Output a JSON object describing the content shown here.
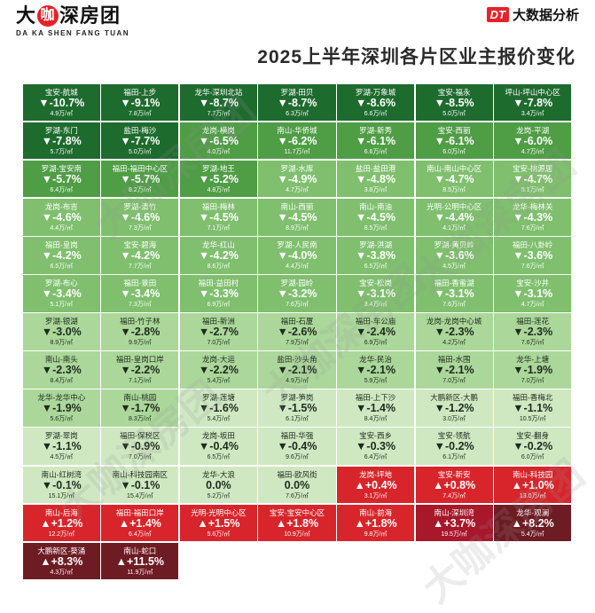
{
  "brand": {
    "name_left": "大",
    "name_ka": "咖",
    "name_right": "深房团",
    "subtitle": "DA KA SHEN FANG TUAN"
  },
  "source": {
    "logo": "DT",
    "label": "大数据分析"
  },
  "watermark": "大咖深房团",
  "chart_data": {
    "type": "heatmap",
    "title": "2025上半年深圳各片区业主报价变化",
    "columns": 7,
    "price_unit": "万/㎡",
    "colors": {
      "dark_green": "#1e6b2e",
      "green": "#4f9d45",
      "mid_green": "#7fbf6e",
      "light_green": "#abd79a",
      "pale_green": "#cfe8c1",
      "red": "#d7252b",
      "dark_red": "#a8172a",
      "darker_red": "#6e1c24"
    },
    "cells": [
      {
        "name": "宝安-航城",
        "change": "▼-10.7%",
        "price": "4.9万/㎡",
        "value": -10.7
      },
      {
        "name": "福田-上步",
        "change": "▼-9.1%",
        "price": "7.8万/㎡",
        "value": -9.1
      },
      {
        "name": "龙华-深圳北站",
        "change": "▼-8.7%",
        "price": "7.7万/㎡",
        "value": -8.7
      },
      {
        "name": "罗湖-田贝",
        "change": "▼-8.7%",
        "price": "6.3万/㎡",
        "value": -8.7
      },
      {
        "name": "罗湖-万象城",
        "change": "▼-8.6%",
        "price": "6.6万/㎡",
        "value": -8.6
      },
      {
        "name": "宝安-福永",
        "change": "▼-8.5%",
        "price": "5.0万/㎡",
        "value": -8.5
      },
      {
        "name": "坪山-坪山中心区",
        "change": "▼-7.8%",
        "price": "3.4万/㎡",
        "value": -7.8
      },
      {
        "name": "罗湖-东门",
        "change": "▼-7.8%",
        "price": "5.7万/㎡",
        "value": -7.8
      },
      {
        "name": "盐田-梅沙",
        "change": "▼-7.7%",
        "price": "5.0万/㎡",
        "value": -7.7
      },
      {
        "name": "龙岗-横岗",
        "change": "▼-6.5%",
        "price": "4.0万/㎡",
        "value": -6.5
      },
      {
        "name": "南山-华侨城",
        "change": "▼-6.2%",
        "price": "11.7万/㎡",
        "value": -6.2
      },
      {
        "name": "罗湖-新秀",
        "change": "▼-6.1%",
        "price": "6.6万/㎡",
        "value": -6.1
      },
      {
        "name": "宝安-西丽",
        "change": "▼-6.1%",
        "price": "6.0万/㎡",
        "value": -6.1
      },
      {
        "name": "龙岗-平湖",
        "change": "▼-6.0%",
        "price": "4.7万/㎡",
        "value": -6.0
      },
      {
        "name": "罗湖-宝安南",
        "change": "▼-5.7%",
        "price": "6.4万/㎡",
        "value": -5.7
      },
      {
        "name": "福田-福田中心区",
        "change": "▼-5.7%",
        "price": "8.2万/㎡",
        "value": -5.7
      },
      {
        "name": "罗湖-地王",
        "change": "▼-5.2%",
        "price": "4.8万/㎡",
        "value": -5.2
      },
      {
        "name": "罗湖-水库",
        "change": "▼-4.9%",
        "price": "4.7万/㎡",
        "value": -4.9
      },
      {
        "name": "盐田-盐田港",
        "change": "▼-4.8%",
        "price": "3.8万/㎡",
        "value": -4.8
      },
      {
        "name": "南山-南山中心区",
        "change": "▼-4.7%",
        "price": "8.5万/㎡",
        "value": -4.7
      },
      {
        "name": "宝安-桃源居",
        "change": "▼-4.7%",
        "price": "5.1万/㎡",
        "value": -4.7
      },
      {
        "name": "龙岗-布吉",
        "change": "▼-4.6%",
        "price": "4.4万/㎡",
        "value": -4.6
      },
      {
        "name": "罗湖-清竹",
        "change": "▼-4.6%",
        "price": "7.3万/㎡",
        "value": -4.6
      },
      {
        "name": "福田-梅林",
        "change": "▼-4.5%",
        "price": "7.1万/㎡",
        "value": -4.5
      },
      {
        "name": "南山-西丽",
        "change": "▼-4.5%",
        "price": "8.9万/㎡",
        "value": -4.5
      },
      {
        "name": "南山-南油",
        "change": "▼-4.5%",
        "price": "8.5万/㎡",
        "value": -4.5
      },
      {
        "name": "光明-公明中心区",
        "change": "▼-4.4%",
        "price": "4.1万/㎡",
        "value": -4.4
      },
      {
        "name": "龙华-梅林关",
        "change": "▼-4.3%",
        "price": "7.6万/㎡",
        "value": -4.3
      },
      {
        "name": "福田-皇岗",
        "change": "▼-4.2%",
        "price": "6.5万/㎡",
        "value": -4.2
      },
      {
        "name": "宝安-碧海",
        "change": "▼-4.2%",
        "price": "7.7万/㎡",
        "value": -4.2
      },
      {
        "name": "龙华-红山",
        "change": "▼-4.2%",
        "price": "8.6万/㎡",
        "value": -4.2
      },
      {
        "name": "罗湖-人民南",
        "change": "▼-4.0%",
        "price": "4.4万/㎡",
        "value": -4.0
      },
      {
        "name": "罗湖-洪湖",
        "change": "▼-3.8%",
        "price": "6.5万/㎡",
        "value": -3.8
      },
      {
        "name": "罗湖-黄贝岭",
        "change": "▼-3.6%",
        "price": "4.5万/㎡",
        "value": -3.6
      },
      {
        "name": "福田-八卦岭",
        "change": "▼-3.6%",
        "price": "7.6万/㎡",
        "value": -3.6
      },
      {
        "name": "罗湖-布心",
        "change": "▼-3.4%",
        "price": "5.1万/㎡",
        "value": -3.4
      },
      {
        "name": "福田-景田",
        "change": "▼-3.4%",
        "price": "7.3万/㎡",
        "value": -3.4
      },
      {
        "name": "福田-益田村",
        "change": "▼-3.3%",
        "price": "6.9万/㎡",
        "value": -3.3
      },
      {
        "name": "罗湖-园岭",
        "change": "▼-3.2%",
        "price": "7.6万/㎡",
        "value": -3.2
      },
      {
        "name": "宝安-松岗",
        "change": "▼-3.1%",
        "price": "3.4万/㎡",
        "value": -3.1
      },
      {
        "name": "福田-香蜜湖",
        "change": "▼-3.1%",
        "price": "7.6万/㎡",
        "value": -3.1
      },
      {
        "name": "宝安-沙井",
        "change": "▼-3.1%",
        "price": "4.7万/㎡",
        "value": -3.1
      },
      {
        "name": "罗湖-银湖",
        "change": "▼-3.0%",
        "price": "8.9万/㎡",
        "value": -3.0
      },
      {
        "name": "福田-竹子林",
        "change": "▼-2.8%",
        "price": "9.9万/㎡",
        "value": -2.8
      },
      {
        "name": "福田-新洲",
        "change": "▼-2.7%",
        "price": "7.0万/㎡",
        "value": -2.7
      },
      {
        "name": "福田-石厦",
        "change": "▼-2.6%",
        "price": "7.9万/㎡",
        "value": -2.6
      },
      {
        "name": "福田-车公庙",
        "change": "▼-2.4%",
        "price": "6.9万/㎡",
        "value": -2.4
      },
      {
        "name": "龙岗-龙岗中心城",
        "change": "▼-2.3%",
        "price": "4.2万/㎡",
        "value": -2.3
      },
      {
        "name": "福田-莲花",
        "change": "▼-2.3%",
        "price": "7.6万/㎡",
        "value": -2.3
      },
      {
        "name": "南山-南头",
        "change": "▼-2.3%",
        "price": "8.4万/㎡",
        "value": -2.3
      },
      {
        "name": "福田-皇岗口岸",
        "change": "▼-2.2%",
        "price": "7.1万/㎡",
        "value": -2.2
      },
      {
        "name": "龙岗-大运",
        "change": "▼-2.2%",
        "price": "5.4万/㎡",
        "value": -2.2
      },
      {
        "name": "盐田-沙头角",
        "change": "▼-2.1%",
        "price": "4.9万/㎡",
        "value": -2.1
      },
      {
        "name": "龙华-民治",
        "change": "▼-2.1%",
        "price": "5.9万/㎡",
        "value": -2.1
      },
      {
        "name": "福田-水围",
        "change": "▼-2.1%",
        "price": "7.0万/㎡",
        "value": -2.1
      },
      {
        "name": "龙华-上塘",
        "change": "▼-1.9%",
        "price": "7.0万/㎡",
        "value": -1.9
      },
      {
        "name": "龙华-龙华中心",
        "change": "▼-1.9%",
        "price": "5.6万/㎡",
        "value": -1.9
      },
      {
        "name": "南山-桃园",
        "change": "▼-1.7%",
        "price": "8.3万/㎡",
        "value": -1.7
      },
      {
        "name": "罗湖-莲塘",
        "change": "▼-1.6%",
        "price": "5.4万/㎡",
        "value": -1.6
      },
      {
        "name": "罗湖-笋岗",
        "change": "▼-1.5%",
        "price": "6.1万/㎡",
        "value": -1.5
      },
      {
        "name": "福田-上下沙",
        "change": "▼-1.4%",
        "price": "8.4万/㎡",
        "value": -1.4
      },
      {
        "name": "大鹏新区-大鹏",
        "change": "▼-1.2%",
        "price": "3.0万/㎡",
        "value": -1.2
      },
      {
        "name": "福田-香梅北",
        "change": "▼-1.1%",
        "price": "10.5万/㎡",
        "value": -1.1
      },
      {
        "name": "罗湖-翠岗",
        "change": "▼-1.1%",
        "price": "4.5万/㎡",
        "value": -1.1
      },
      {
        "name": "福田-保税区",
        "change": "▼-0.9%",
        "price": "7.0万/㎡",
        "value": -0.9
      },
      {
        "name": "龙岗-坂田",
        "change": "▼-0.4%",
        "price": "6.5万/㎡",
        "value": -0.4
      },
      {
        "name": "福田-华强",
        "change": "▼-0.4%",
        "price": "9.6万/㎡",
        "value": -0.4
      },
      {
        "name": "宝安-西乡",
        "change": "▼-0.3%",
        "price": "6.4万/㎡",
        "value": -0.3
      },
      {
        "name": "宝安-领航",
        "change": "▼-0.2%",
        "price": "6.1万/㎡",
        "value": -0.2
      },
      {
        "name": "宝安-翻身",
        "change": "▼-0.2%",
        "price": "6.0万/㎡",
        "value": -0.2
      },
      {
        "name": "南山-红树湾",
        "change": "▼-0.1%",
        "price": "15.1万/㎡",
        "value": -0.1
      },
      {
        "name": "南山-科技园南区",
        "change": "▼-0.1%",
        "price": "15.4万/㎡",
        "value": -0.1
      },
      {
        "name": "龙华-大浪",
        "change": "0.0%",
        "price": "5.2万/㎡",
        "value": 0.0
      },
      {
        "name": "福田-欧风街",
        "change": "0.0%",
        "price": "7.6万/㎡",
        "value": 0.0
      },
      {
        "name": "龙岗-坪地",
        "change": "▲+0.4%",
        "price": "3.1万/㎡",
        "value": 0.4
      },
      {
        "name": "宝安-新安",
        "change": "▲+0.8%",
        "price": "7.4万/㎡",
        "value": 0.8
      },
      {
        "name": "南山-科技园",
        "change": "▲+1.0%",
        "price": "13.0万/㎡",
        "value": 1.0
      },
      {
        "name": "南山-后海",
        "change": "▲+1.2%",
        "price": "12.2万/㎡",
        "value": 1.2
      },
      {
        "name": "福田-福田口岸",
        "change": "▲+1.4%",
        "price": "6.4万/㎡",
        "value": 1.4
      },
      {
        "name": "光明-光明中心区",
        "change": "▲+1.5%",
        "price": "5.6万/㎡",
        "value": 1.5
      },
      {
        "name": "宝安-宝安中心区",
        "change": "▲+1.8%",
        "price": "10.9万/㎡",
        "value": 1.8
      },
      {
        "name": "南山-前海",
        "change": "▲+1.8%",
        "price": "9.8万/㎡",
        "value": 1.8
      },
      {
        "name": "南山-深圳湾",
        "change": "▲+3.7%",
        "price": "19.5万/㎡",
        "value": 3.7
      },
      {
        "name": "龙华-观澜",
        "change": "▲+8.2%",
        "price": "5.4万/㎡",
        "value": 8.2
      },
      {
        "name": "大鹏新区-葵涌",
        "change": "▲+8.3%",
        "price": "4.3万/㎡",
        "value": 8.3
      },
      {
        "name": "南山-蛇口",
        "change": "▲+11.5%",
        "price": "11.9万/㎡",
        "value": 11.5
      }
    ]
  }
}
